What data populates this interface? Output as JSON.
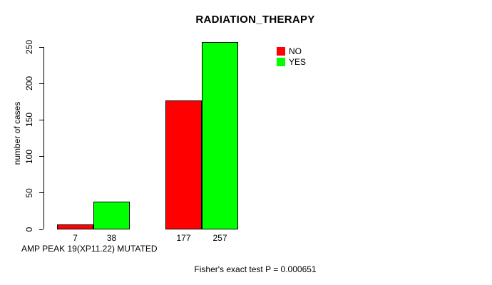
{
  "chart_data": {
    "type": "bar",
    "title": "RADIATION_THERAPY",
    "ylabel": "number of cases",
    "xlabel": "AMP PEAK 19(XP11.22) MUTATED",
    "note": "Fisher's exact test P = 0.000651",
    "group_count": 2,
    "series": [
      {
        "name": "NO",
        "color": "#ff0000",
        "values": [
          7,
          177
        ]
      },
      {
        "name": "YES",
        "color": "#00ff00",
        "values": [
          38,
          257
        ]
      }
    ],
    "bar_value_labels": [
      [
        "7",
        "177"
      ],
      [
        "38",
        "257"
      ]
    ],
    "yticks": [
      0,
      50,
      100,
      150,
      200,
      250
    ],
    "ylim": [
      0,
      250
    ],
    "grid": false,
    "legend_position": "top-right",
    "bar_border_color": "#000000",
    "axis_color": "#000000",
    "background_color": "#ffffff"
  }
}
